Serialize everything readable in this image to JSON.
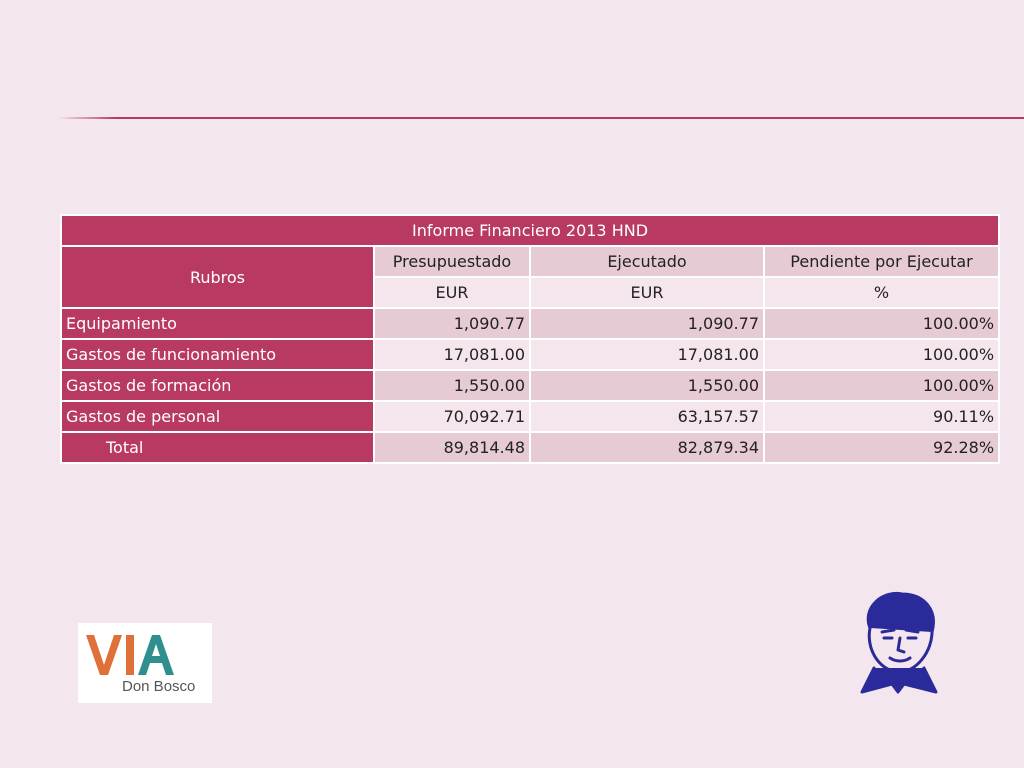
{
  "table": {
    "title": "Informe Financiero 2013 HND",
    "rubros_label": "Rubros",
    "columns": [
      "Presupuestado",
      "Ejecutado",
      "Pendiente por Ejecutar"
    ],
    "units": [
      "EUR",
      "EUR",
      "%"
    ],
    "rows": [
      {
        "label": "Equipamiento",
        "presupuestado": "1,090.77",
        "ejecutado": "1,090.77",
        "pendiente": "100.00%"
      },
      {
        "label": "Gastos de funcionamiento",
        "presupuestado": "17,081.00",
        "ejecutado": "17,081.00",
        "pendiente": "100.00%"
      },
      {
        "label": "Gastos de formación",
        "presupuestado": "1,550.00",
        "ejecutado": "1,550.00",
        "pendiente": "100.00%"
      },
      {
        "label": "Gastos de personal",
        "presupuestado": "70,092.71",
        "ejecutado": "63,157.57",
        "pendiente": "90.11%"
      }
    ],
    "total": {
      "label": "Total",
      "presupuestado": "89,814.48",
      "ejecutado": "82,879.34",
      "pendiente": "92.28%"
    }
  },
  "logo": {
    "text_main": "VIA",
    "text_sub": "Don Bosco"
  },
  "colors": {
    "background": "#f3e6ee",
    "accent": "#b83a62",
    "cell_dark": "#e6cbd4",
    "cell_light": "#f4e6ec",
    "logo_orange": "#e0703a",
    "logo_teal": "#2f8f8f",
    "portrait_blue": "#2a2a9a"
  },
  "icons": [
    "via-don-bosco-logo",
    "don-bosco-portrait-icon"
  ]
}
